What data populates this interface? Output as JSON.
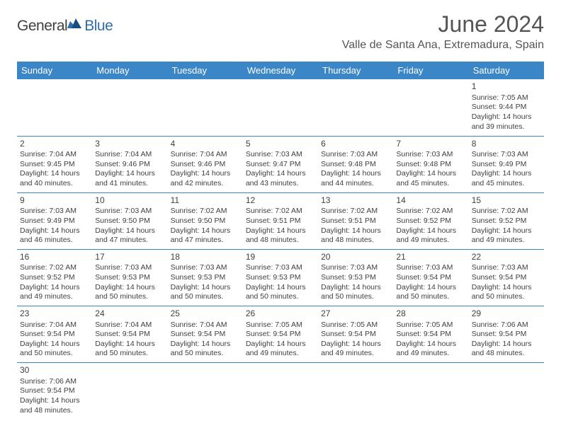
{
  "logo": {
    "text_general": "General",
    "text_blue": "Blue"
  },
  "title": {
    "month": "June 2024",
    "location": "Valle de Santa Ana, Extremadura, Spain"
  },
  "colors": {
    "header_bg": "#3b86c6",
    "header_fg": "#ffffff",
    "border": "#3b86c6",
    "text": "#404040",
    "title_text": "#555555",
    "logo_blue": "#2f6fad"
  },
  "day_headers": [
    "Sunday",
    "Monday",
    "Tuesday",
    "Wednesday",
    "Thursday",
    "Friday",
    "Saturday"
  ],
  "weeks": [
    [
      null,
      null,
      null,
      null,
      null,
      null,
      {
        "n": "1",
        "sr": "7:05 AM",
        "ss": "9:44 PM",
        "dl": "14 hours and 39 minutes."
      }
    ],
    [
      {
        "n": "2",
        "sr": "7:04 AM",
        "ss": "9:45 PM",
        "dl": "14 hours and 40 minutes."
      },
      {
        "n": "3",
        "sr": "7:04 AM",
        "ss": "9:46 PM",
        "dl": "14 hours and 41 minutes."
      },
      {
        "n": "4",
        "sr": "7:04 AM",
        "ss": "9:46 PM",
        "dl": "14 hours and 42 minutes."
      },
      {
        "n": "5",
        "sr": "7:03 AM",
        "ss": "9:47 PM",
        "dl": "14 hours and 43 minutes."
      },
      {
        "n": "6",
        "sr": "7:03 AM",
        "ss": "9:48 PM",
        "dl": "14 hours and 44 minutes."
      },
      {
        "n": "7",
        "sr": "7:03 AM",
        "ss": "9:48 PM",
        "dl": "14 hours and 45 minutes."
      },
      {
        "n": "8",
        "sr": "7:03 AM",
        "ss": "9:49 PM",
        "dl": "14 hours and 45 minutes."
      }
    ],
    [
      {
        "n": "9",
        "sr": "7:03 AM",
        "ss": "9:49 PM",
        "dl": "14 hours and 46 minutes."
      },
      {
        "n": "10",
        "sr": "7:03 AM",
        "ss": "9:50 PM",
        "dl": "14 hours and 47 minutes."
      },
      {
        "n": "11",
        "sr": "7:02 AM",
        "ss": "9:50 PM",
        "dl": "14 hours and 47 minutes."
      },
      {
        "n": "12",
        "sr": "7:02 AM",
        "ss": "9:51 PM",
        "dl": "14 hours and 48 minutes."
      },
      {
        "n": "13",
        "sr": "7:02 AM",
        "ss": "9:51 PM",
        "dl": "14 hours and 48 minutes."
      },
      {
        "n": "14",
        "sr": "7:02 AM",
        "ss": "9:52 PM",
        "dl": "14 hours and 49 minutes."
      },
      {
        "n": "15",
        "sr": "7:02 AM",
        "ss": "9:52 PM",
        "dl": "14 hours and 49 minutes."
      }
    ],
    [
      {
        "n": "16",
        "sr": "7:02 AM",
        "ss": "9:52 PM",
        "dl": "14 hours and 49 minutes."
      },
      {
        "n": "17",
        "sr": "7:03 AM",
        "ss": "9:53 PM",
        "dl": "14 hours and 50 minutes."
      },
      {
        "n": "18",
        "sr": "7:03 AM",
        "ss": "9:53 PM",
        "dl": "14 hours and 50 minutes."
      },
      {
        "n": "19",
        "sr": "7:03 AM",
        "ss": "9:53 PM",
        "dl": "14 hours and 50 minutes."
      },
      {
        "n": "20",
        "sr": "7:03 AM",
        "ss": "9:53 PM",
        "dl": "14 hours and 50 minutes."
      },
      {
        "n": "21",
        "sr": "7:03 AM",
        "ss": "9:54 PM",
        "dl": "14 hours and 50 minutes."
      },
      {
        "n": "22",
        "sr": "7:03 AM",
        "ss": "9:54 PM",
        "dl": "14 hours and 50 minutes."
      }
    ],
    [
      {
        "n": "23",
        "sr": "7:04 AM",
        "ss": "9:54 PM",
        "dl": "14 hours and 50 minutes."
      },
      {
        "n": "24",
        "sr": "7:04 AM",
        "ss": "9:54 PM",
        "dl": "14 hours and 50 minutes."
      },
      {
        "n": "25",
        "sr": "7:04 AM",
        "ss": "9:54 PM",
        "dl": "14 hours and 50 minutes."
      },
      {
        "n": "26",
        "sr": "7:05 AM",
        "ss": "9:54 PM",
        "dl": "14 hours and 49 minutes."
      },
      {
        "n": "27",
        "sr": "7:05 AM",
        "ss": "9:54 PM",
        "dl": "14 hours and 49 minutes."
      },
      {
        "n": "28",
        "sr": "7:05 AM",
        "ss": "9:54 PM",
        "dl": "14 hours and 49 minutes."
      },
      {
        "n": "29",
        "sr": "7:06 AM",
        "ss": "9:54 PM",
        "dl": "14 hours and 48 minutes."
      }
    ],
    [
      {
        "n": "30",
        "sr": "7:06 AM",
        "ss": "9:54 PM",
        "dl": "14 hours and 48 minutes."
      },
      null,
      null,
      null,
      null,
      null,
      null
    ]
  ],
  "labels": {
    "sunrise": "Sunrise: ",
    "sunset": "Sunset: ",
    "daylight": "Daylight: "
  }
}
